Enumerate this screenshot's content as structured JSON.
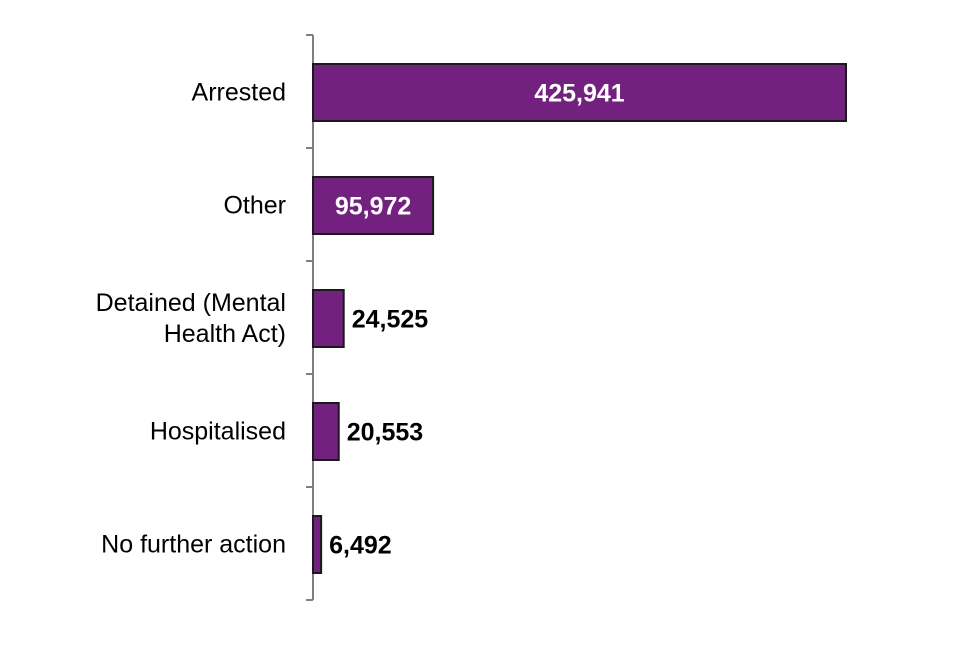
{
  "chart_data": {
    "type": "bar",
    "orientation": "horizontal",
    "title": "",
    "xlabel": "",
    "ylabel": "",
    "grid": false,
    "legend": "none",
    "xlim": [
      0,
      425941
    ],
    "bar_color": "#72217f",
    "bar_outline_color": "#1a1a1a",
    "axis_color": "#7f7f7f",
    "categories": [
      [
        "Arrested"
      ],
      [
        "Other"
      ],
      [
        "Detained (Mental",
        "Health Act)"
      ],
      [
        "Hospitalised"
      ],
      [
        "No further action"
      ]
    ],
    "values": [
      425941,
      95972,
      24525,
      20553,
      6492
    ],
    "data_labels": [
      "425,941",
      "95,972",
      "24,525",
      "20,553",
      "6,492"
    ],
    "data_label_placement": [
      "inside",
      "inside",
      "outside",
      "outside",
      "outside"
    ]
  }
}
